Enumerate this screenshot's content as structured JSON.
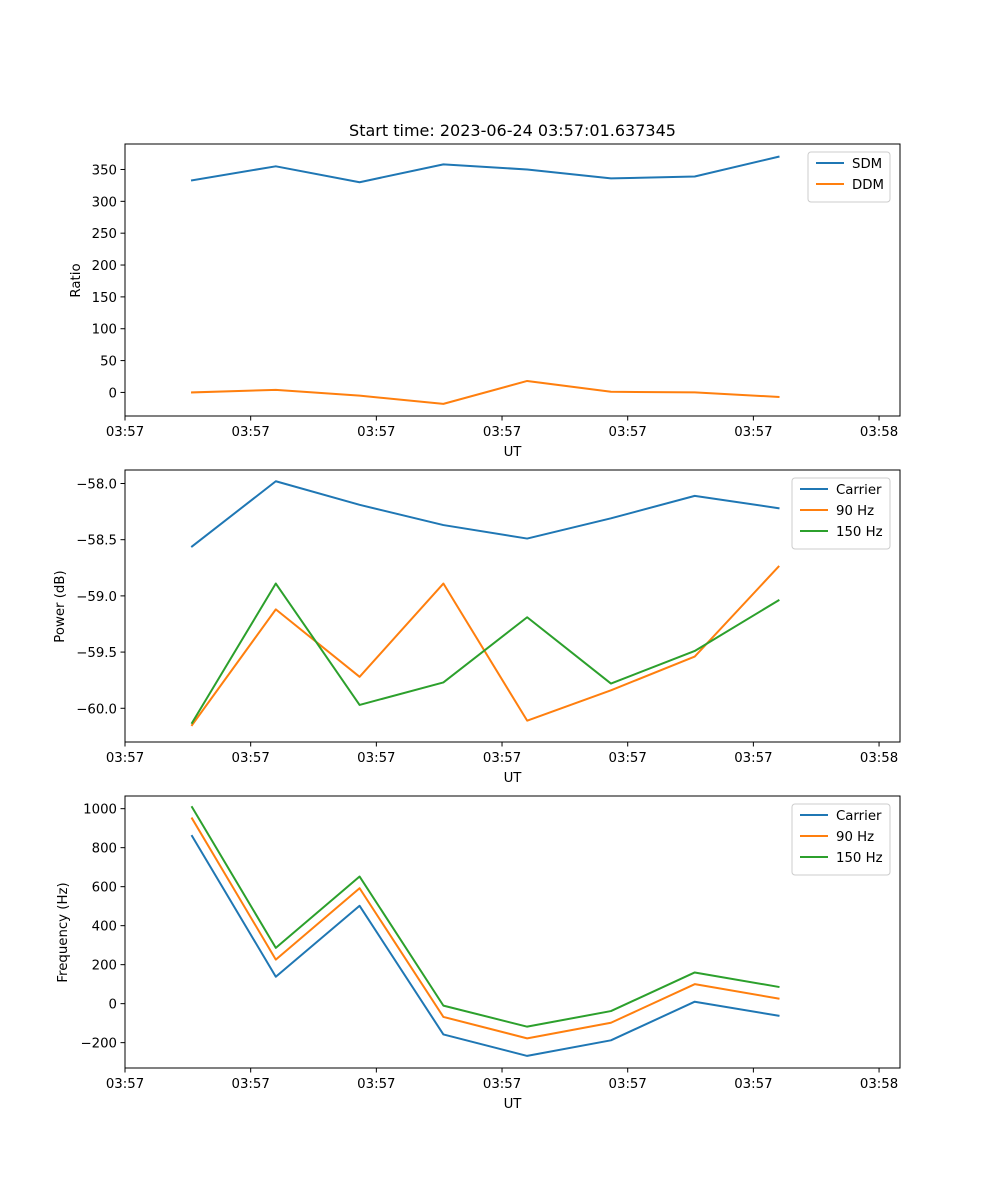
{
  "figure": {
    "title": "Start time: 2023-06-24 03:57:01.637345"
  },
  "chart_data": [
    {
      "type": "line",
      "title": "Start time: 2023-06-24 03:57:01.637345",
      "xlabel": "UT",
      "ylabel": "Ratio",
      "x": [
        1,
        2,
        3,
        4,
        5,
        6,
        7,
        8
      ],
      "xlim": [
        0.2,
        9.45
      ],
      "xticks": [
        0.2,
        1.7,
        3.2,
        4.7,
        6.2,
        7.7,
        9.2
      ],
      "xtick_labels": [
        "03:57",
        "03:57",
        "03:57",
        "03:57",
        "03:57",
        "03:57",
        "03:58"
      ],
      "ylim": [
        -37,
        390
      ],
      "yticks": [
        0,
        50,
        100,
        150,
        200,
        250,
        300,
        350
      ],
      "grid": false,
      "legend_position": "upper right",
      "series": [
        {
          "name": "SDM",
          "color": "#1f77b4",
          "values": [
            333,
            355,
            330,
            358,
            350,
            336,
            339,
            370
          ]
        },
        {
          "name": "DDM",
          "color": "#ff7f0e",
          "values": [
            0,
            4,
            -5,
            -18,
            18,
            1,
            0,
            -7
          ]
        }
      ]
    },
    {
      "type": "line",
      "title": "",
      "xlabel": "UT",
      "ylabel": "Power (dB)",
      "x": [
        1,
        2,
        3,
        4,
        5,
        6,
        7,
        8
      ],
      "xlim": [
        0.2,
        9.45
      ],
      "xticks": [
        0.2,
        1.7,
        3.2,
        4.7,
        6.2,
        7.7,
        9.2
      ],
      "xtick_labels": [
        "03:57",
        "03:57",
        "03:57",
        "03:57",
        "03:57",
        "03:57",
        "03:58"
      ],
      "ylim": [
        -60.3,
        -57.88
      ],
      "yticks": [
        -60.0,
        -59.5,
        -59.0,
        -58.5,
        -58.0
      ],
      "grid": false,
      "legend_position": "upper right",
      "series": [
        {
          "name": "Carrier",
          "color": "#1f77b4",
          "values": [
            -58.56,
            -57.98,
            -58.19,
            -58.37,
            -58.49,
            -58.31,
            -58.11,
            -58.22
          ]
        },
        {
          "name": "90 Hz",
          "color": "#ff7f0e",
          "values": [
            -60.15,
            -59.12,
            -59.72,
            -58.89,
            -60.11,
            -59.84,
            -59.54,
            -58.74
          ]
        },
        {
          "name": "150 Hz",
          "color": "#2ca02c",
          "values": [
            -60.13,
            -58.89,
            -59.97,
            -59.77,
            -59.19,
            -59.78,
            -59.49,
            -59.04
          ]
        }
      ]
    },
    {
      "type": "line",
      "title": "",
      "xlabel": "UT",
      "ylabel": "Frequency (Hz)",
      "x": [
        1,
        2,
        3,
        4,
        5,
        6,
        7,
        8
      ],
      "xlim": [
        0.2,
        9.45
      ],
      "xticks": [
        0.2,
        1.7,
        3.2,
        4.7,
        6.2,
        7.7,
        9.2
      ],
      "xtick_labels": [
        "03:57",
        "03:57",
        "03:57",
        "03:57",
        "03:57",
        "03:57",
        "03:58"
      ],
      "ylim": [
        -330,
        1065
      ],
      "yticks": [
        -200,
        0,
        200,
        400,
        600,
        800,
        1000
      ],
      "grid": false,
      "legend_position": "upper right",
      "series": [
        {
          "name": "Carrier",
          "color": "#1f77b4",
          "values": [
            860,
            138,
            502,
            -158,
            -268,
            -188,
            10,
            -62
          ]
        },
        {
          "name": "90 Hz",
          "color": "#ff7f0e",
          "values": [
            950,
            226,
            592,
            -68,
            -178,
            -98,
            100,
            26
          ]
        },
        {
          "name": "150 Hz",
          "color": "#2ca02c",
          "values": [
            1008,
            286,
            652,
            -10,
            -118,
            -38,
            160,
            86
          ]
        }
      ]
    }
  ]
}
